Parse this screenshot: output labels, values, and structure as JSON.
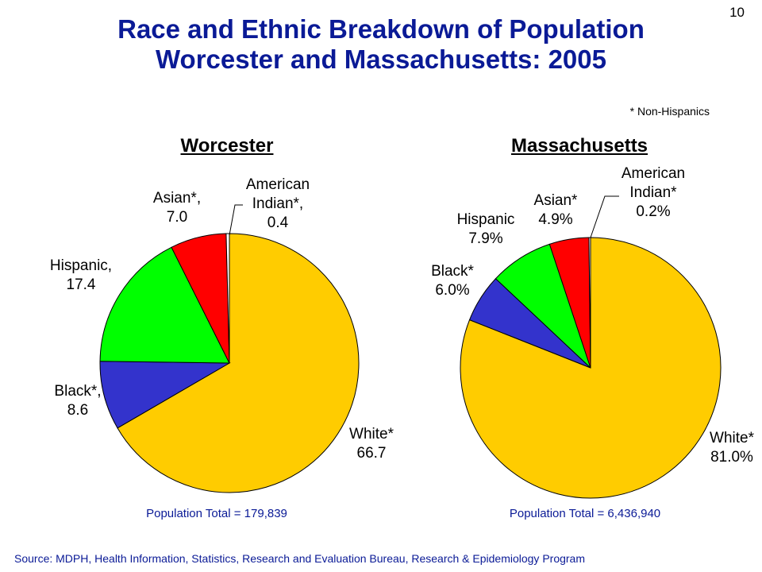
{
  "page_number": "10",
  "title_line1": "Race and Ethnic Breakdown of Population",
  "title_line2": "Worcester and Massachusetts: 2005",
  "footnote": "* Non-Hispanics",
  "source": "Source:  MDPH, Health Information, Statistics, Research and Evaluation Bureau, Research & Epidemiology Program",
  "colors": {
    "title": "#0a1a96",
    "White": "#ffcc00",
    "Black": "#3333cc",
    "Hispanic": "#00ff00",
    "Asian": "#ff0000",
    "American Indian": "#ffffff"
  },
  "chart_data": [
    {
      "type": "pie",
      "title": "Worcester",
      "note": "Population Total = 179,839",
      "slices": [
        {
          "key": "White",
          "value": 66.7,
          "label_lines": [
            "White*",
            "66.7"
          ]
        },
        {
          "key": "Black",
          "value": 8.6,
          "label_lines": [
            "Black*,",
            "8.6"
          ]
        },
        {
          "key": "Hispanic",
          "value": 17.4,
          "label_lines": [
            "Hispanic,",
            "17.4"
          ]
        },
        {
          "key": "Asian",
          "value": 7.0,
          "label_lines": [
            "Asian*,",
            "7.0"
          ]
        },
        {
          "key": "American Indian",
          "value": 0.4,
          "label_lines": [
            "American",
            "Indian*,",
            "0.4"
          ]
        }
      ]
    },
    {
      "type": "pie",
      "title": "Massachusetts",
      "note": "Population Total = 6,436,940",
      "slices": [
        {
          "key": "White",
          "value": 81.0,
          "label_lines": [
            "White*",
            "81.0%"
          ]
        },
        {
          "key": "Black",
          "value": 6.0,
          "label_lines": [
            "Black*",
            "6.0%"
          ]
        },
        {
          "key": "Hispanic",
          "value": 7.9,
          "label_lines": [
            "Hispanic",
            "7.9%"
          ]
        },
        {
          "key": "Asian",
          "value": 4.9,
          "label_lines": [
            "Asian*",
            "4.9%"
          ]
        },
        {
          "key": "American Indian",
          "value": 0.2,
          "label_lines": [
            "American",
            "Indian*",
            "0.2%"
          ]
        }
      ]
    }
  ]
}
